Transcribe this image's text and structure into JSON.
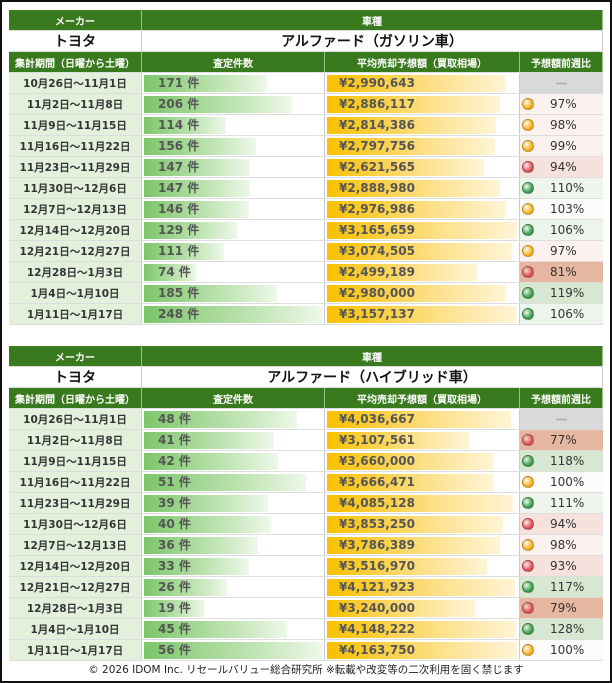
{
  "headers": {
    "maker": "メーカー",
    "model": "車種",
    "period": "集計期間（日曜から土曜）",
    "count": "査定件数",
    "price": "平均売却予想額（買取相場）",
    "ratio": "予想額前週比"
  },
  "tables": [
    {
      "maker": "トヨタ",
      "model": "アルファード（ガソリン車）",
      "rows": [
        {
          "period": "10月26日～11月1日",
          "count": "171 件",
          "count_value": 171,
          "price": "¥2,990,643",
          "price_value": 2990643,
          "ratio": "ー",
          "status": "none"
        },
        {
          "period": "11月2日～11月8日",
          "count": "206 件",
          "count_value": 206,
          "price": "¥2,886,117",
          "price_value": 2886117,
          "ratio": "97%",
          "status": "yellow"
        },
        {
          "period": "11月9日～11月15日",
          "count": "114 件",
          "count_value": 114,
          "price": "¥2,814,386",
          "price_value": 2814386,
          "ratio": "98%",
          "status": "yellow"
        },
        {
          "period": "11月16日～11月22日",
          "count": "156 件",
          "count_value": 156,
          "price": "¥2,797,756",
          "price_value": 2797756,
          "ratio": "99%",
          "status": "yellow"
        },
        {
          "period": "11月23日～11月29日",
          "count": "147 件",
          "count_value": 147,
          "price": "¥2,621,565",
          "price_value": 2621565,
          "ratio": "94%",
          "status": "red"
        },
        {
          "period": "11月30日～12月6日",
          "count": "147 件",
          "count_value": 147,
          "price": "¥2,888,980",
          "price_value": 2888980,
          "ratio": "110%",
          "status": "green"
        },
        {
          "period": "12月7日～12月13日",
          "count": "146 件",
          "count_value": 146,
          "price": "¥2,976,986",
          "price_value": 2976986,
          "ratio": "103%",
          "status": "yellow"
        },
        {
          "period": "12月14日～12月20日",
          "count": "129 件",
          "count_value": 129,
          "price": "¥3,165,659",
          "price_value": 3165659,
          "ratio": "106%",
          "status": "green"
        },
        {
          "period": "12月21日～12月27日",
          "count": "111 件",
          "count_value": 111,
          "price": "¥3,074,505",
          "price_value": 3074505,
          "ratio": "97%",
          "status": "yellow"
        },
        {
          "period": "12月28日～1月3日",
          "count": "74 件",
          "count_value": 74,
          "price": "¥2,499,189",
          "price_value": 2499189,
          "ratio": "81%",
          "status": "red"
        },
        {
          "period": "1月4日～1月10日",
          "count": "185 件",
          "count_value": 185,
          "price": "¥2,980,000",
          "price_value": 2980000,
          "ratio": "119%",
          "status": "green"
        },
        {
          "period": "1月11日～1月17日",
          "count": "248 件",
          "count_value": 248,
          "price": "¥3,157,137",
          "price_value": 3157137,
          "ratio": "106%",
          "status": "green"
        }
      ]
    },
    {
      "maker": "トヨタ",
      "model": "アルファード（ハイブリッド車）",
      "rows": [
        {
          "period": "10月26日～11月1日",
          "count": "48 件",
          "count_value": 48,
          "price": "¥4,036,667",
          "price_value": 4036667,
          "ratio": "ー",
          "status": "none"
        },
        {
          "period": "11月2日～11月8日",
          "count": "41 件",
          "count_value": 41,
          "price": "¥3,107,561",
          "price_value": 3107561,
          "ratio": "77%",
          "status": "red"
        },
        {
          "period": "11月9日～11月15日",
          "count": "42 件",
          "count_value": 42,
          "price": "¥3,660,000",
          "price_value": 3660000,
          "ratio": "118%",
          "status": "green"
        },
        {
          "period": "11月16日～11月22日",
          "count": "51 件",
          "count_value": 51,
          "price": "¥3,666,471",
          "price_value": 3666471,
          "ratio": "100%",
          "status": "yellow"
        },
        {
          "period": "11月23日～11月29日",
          "count": "39 件",
          "count_value": 39,
          "price": "¥4,085,128",
          "price_value": 4085128,
          "ratio": "111%",
          "status": "green"
        },
        {
          "period": "11月30日～12月6日",
          "count": "40 件",
          "count_value": 40,
          "price": "¥3,853,250",
          "price_value": 3853250,
          "ratio": "94%",
          "status": "red"
        },
        {
          "period": "12月7日～12月13日",
          "count": "36 件",
          "count_value": 36,
          "price": "¥3,786,389",
          "price_value": 3786389,
          "ratio": "98%",
          "status": "yellow"
        },
        {
          "period": "12月14日～12月20日",
          "count": "33 件",
          "count_value": 33,
          "price": "¥3,516,970",
          "price_value": 3516970,
          "ratio": "93%",
          "status": "red"
        },
        {
          "period": "12月21日～12月27日",
          "count": "26 件",
          "count_value": 26,
          "price": "¥4,121,923",
          "price_value": 4121923,
          "ratio": "117%",
          "status": "green"
        },
        {
          "period": "12月28日～1月3日",
          "count": "19 件",
          "count_value": 19,
          "price": "¥3,240,000",
          "price_value": 3240000,
          "ratio": "79%",
          "status": "red"
        },
        {
          "period": "1月4日～1月10日",
          "count": "45 件",
          "count_value": 45,
          "price": "¥4,148,222",
          "price_value": 4148222,
          "ratio": "128%",
          "status": "green"
        },
        {
          "period": "1月11日～1月17日",
          "count": "56 件",
          "count_value": 56,
          "price": "¥4,163,750",
          "price_value": 4163750,
          "ratio": "100%",
          "status": "yellow"
        }
      ]
    }
  ],
  "colors": {
    "header_green": "#3a7a1e",
    "dot_green": "#3f9e4f",
    "dot_yellow": "#f6b21a",
    "dot_red": "#e0505a"
  },
  "footer": "© 2026 IDOM Inc. リセールバリュー総合研究所 ※転載や改変等の二次利用を固く禁じます"
}
